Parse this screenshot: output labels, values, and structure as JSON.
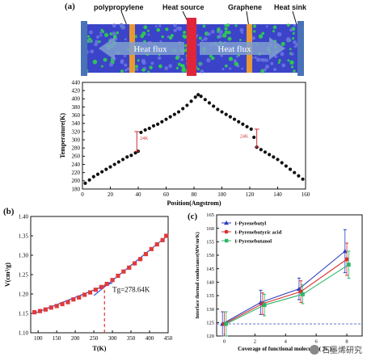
{
  "panels": {
    "a": "(a)",
    "b": "(b)",
    "c": "(c)"
  },
  "simulation": {
    "labels": {
      "polypropylene": "polypropylene",
      "heat_source": "Heat source",
      "graphene": "Graphene",
      "heat_sink": "Heat sink"
    },
    "flux_label": "Heat flux",
    "colors": {
      "matrix": "#3b44c8",
      "dots": "#2fd14a",
      "source": "#e0253a",
      "graphene": "#e79a33",
      "sink": "#4a72b8",
      "arrow": "#7f9fcf"
    }
  },
  "chart_data": [
    {
      "id": "temperature-profile",
      "type": "scatter",
      "xlabel": "Position(Angstrom)",
      "ylabel": "Temperature(K)",
      "xlim": [
        0,
        160
      ],
      "ylim": [
        180,
        440
      ],
      "xticks": [
        0,
        20,
        40,
        60,
        80,
        100,
        120,
        140,
        160
      ],
      "yticks": [
        180,
        200,
        220,
        240,
        260,
        280,
        300,
        320,
        340,
        360,
        380,
        400,
        420,
        440
      ],
      "annotations": [
        "24K",
        "24K"
      ],
      "points": [
        [
          2,
          194
        ],
        [
          5,
          202
        ],
        [
          8,
          210
        ],
        [
          11,
          216
        ],
        [
          14,
          222
        ],
        [
          17,
          228
        ],
        [
          20,
          234
        ],
        [
          23,
          240
        ],
        [
          26,
          246
        ],
        [
          29,
          252
        ],
        [
          32,
          258
        ],
        [
          35,
          262
        ],
        [
          38,
          268
        ],
        [
          40,
          272
        ],
        [
          42,
          318
        ],
        [
          45,
          324
        ],
        [
          48,
          328
        ],
        [
          51,
          334
        ],
        [
          54,
          338
        ],
        [
          57,
          344
        ],
        [
          60,
          350
        ],
        [
          63,
          356
        ],
        [
          66,
          362
        ],
        [
          69,
          368
        ],
        [
          72,
          376
        ],
        [
          75,
          384
        ],
        [
          78,
          394
        ],
        [
          81,
          404
        ],
        [
          83,
          410
        ],
        [
          85,
          406
        ],
        [
          88,
          398
        ],
        [
          91,
          390
        ],
        [
          94,
          382
        ],
        [
          97,
          374
        ],
        [
          100,
          368
        ],
        [
          103,
          362
        ],
        [
          106,
          356
        ],
        [
          109,
          350
        ],
        [
          112,
          344
        ],
        [
          115,
          338
        ],
        [
          118,
          332
        ],
        [
          121,
          326
        ],
        [
          123,
          306
        ],
        [
          125,
          282
        ],
        [
          128,
          276
        ],
        [
          131,
          270
        ],
        [
          134,
          264
        ],
        [
          137,
          258
        ],
        [
          140,
          252
        ],
        [
          143,
          244
        ],
        [
          146,
          236
        ],
        [
          149,
          228
        ],
        [
          152,
          220
        ],
        [
          155,
          212
        ],
        [
          158,
          204
        ]
      ]
    },
    {
      "id": "volume-temperature",
      "type": "line",
      "xlabel": "T(K)",
      "ylabel": "V(cm³/g)",
      "xlim": [
        80,
        450
      ],
      "ylim": [
        1.1,
        1.4
      ],
      "xticks": [
        100,
        150,
        200,
        250,
        300,
        350,
        400,
        450
      ],
      "yticks": [
        1.1,
        1.15,
        1.2,
        1.25,
        1.3,
        1.35,
        1.4
      ],
      "ytick_labels": [
        "1.10",
        "1.15",
        "1.20",
        "1.25",
        "1.30",
        "1.35",
        "1.40"
      ],
      "annotation": "Tg=278.64K",
      "tg": 278.64,
      "points": [
        [
          90,
          1.153
        ],
        [
          105,
          1.156
        ],
        [
          120,
          1.16
        ],
        [
          135,
          1.165
        ],
        [
          150,
          1.169
        ],
        [
          165,
          1.174
        ],
        [
          180,
          1.179
        ],
        [
          195,
          1.186
        ],
        [
          210,
          1.191
        ],
        [
          225,
          1.198
        ],
        [
          240,
          1.204
        ],
        [
          255,
          1.211
        ],
        [
          270,
          1.218
        ],
        [
          285,
          1.226
        ],
        [
          300,
          1.236
        ],
        [
          315,
          1.247
        ],
        [
          330,
          1.258
        ],
        [
          345,
          1.268
        ],
        [
          360,
          1.279
        ],
        [
          375,
          1.29
        ],
        [
          390,
          1.303
        ],
        [
          405,
          1.316
        ],
        [
          420,
          1.328
        ],
        [
          435,
          1.339
        ],
        [
          445,
          1.35
        ]
      ],
      "fit_low": [
        [
          90,
          1.15
        ],
        [
          300,
          1.229
        ]
      ],
      "fit_high": [
        [
          250,
          1.196
        ],
        [
          450,
          1.352
        ]
      ]
    },
    {
      "id": "interface-conductance",
      "type": "line",
      "xlabel": "Coverage of functional molecules ( % )",
      "ylabel": "Interface thermal conductance(MW/m²K)",
      "xlim": [
        -0.5,
        9
      ],
      "ylim": [
        120,
        165
      ],
      "xticks": [
        0,
        2,
        4,
        6,
        8
      ],
      "yticks": [
        120,
        125,
        130,
        135,
        140,
        145,
        150,
        155,
        160,
        165
      ],
      "baseline": 124.5,
      "series": [
        {
          "name": "1-Pyrenebutyl",
          "color": "#2b3fbf",
          "marker": "triangle",
          "x": [
            0,
            2.5,
            5,
            8
          ],
          "y": [
            124.5,
            132.5,
            137.5,
            151.5
          ],
          "err": [
            4.5,
            4.5,
            4,
            8
          ]
        },
        {
          "name": "1-Pyrenebutyric acid",
          "color": "#d93030",
          "marker": "circle",
          "x": [
            0,
            2.5,
            5,
            8
          ],
          "y": [
            124.5,
            132,
            136.5,
            148.5
          ],
          "err": [
            4.5,
            4,
            4,
            6
          ]
        },
        {
          "name": "1-Pyrenebutanol",
          "color": "#2db56a",
          "marker": "square",
          "x": [
            0,
            2.5,
            5,
            8
          ],
          "y": [
            124.5,
            131.5,
            135.5,
            146.5
          ],
          "err": [
            4.5,
            4,
            3.5,
            5
          ]
        }
      ]
    }
  ],
  "watermark": "石墨烯研究"
}
